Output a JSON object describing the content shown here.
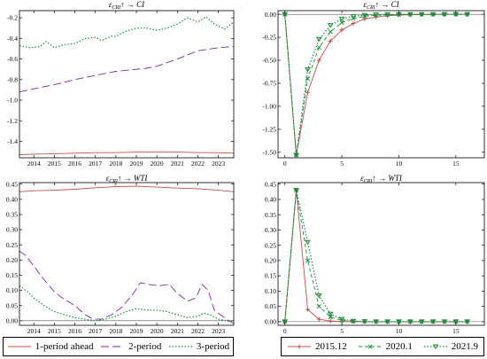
{
  "chart_data": [
    {
      "type": "line",
      "title": "ε_CRI ↑ → CI",
      "title_main": "ε",
      "title_sub": "CRI",
      "title_rest": "↑ → CI",
      "xaxis": "time",
      "x_tick_labels": [
        "2014",
        "2015",
        "2016",
        "2017",
        "2018",
        "2019",
        "2020",
        "2021",
        "2022",
        "2023"
      ],
      "x_tick_values": [
        2014,
        2015,
        2016,
        2017,
        2018,
        2019,
        2020,
        2021,
        2022,
        2023
      ],
      "xlim": [
        2013.3,
        2023.75
      ],
      "ylim": [
        -1.56,
        -0.13
      ],
      "y_ticks": [
        -1.4,
        -1.2,
        -1.0,
        -0.8,
        -0.6,
        -0.4,
        -0.2
      ],
      "y_tick_labels": [
        "-1.4",
        "-1.2",
        "-1.0",
        "-0.8",
        "-0.6",
        "-0.4",
        "-0.2"
      ],
      "zero_line": false,
      "legend": "bottom",
      "series": [
        {
          "name": "1-period ahead",
          "color": "#c0504d",
          "dash": "solid",
          "x": [
            2013.3,
            2014,
            2015,
            2016,
            2017,
            2018,
            2019,
            2020,
            2021,
            2022,
            2023,
            2023.75
          ],
          "y": [
            -1.53,
            -1.525,
            -1.52,
            -1.515,
            -1.51,
            -1.51,
            -1.505,
            -1.505,
            -1.505,
            -1.51,
            -1.51,
            -1.515
          ]
        },
        {
          "name": "2-period",
          "color": "#7b2c8f",
          "dash": "long",
          "x": [
            2013.3,
            2014,
            2015,
            2016,
            2017,
            2018,
            2019,
            2019.5,
            2020,
            2021,
            2022,
            2023,
            2023.75
          ],
          "y": [
            -0.92,
            -0.89,
            -0.85,
            -0.8,
            -0.76,
            -0.72,
            -0.7,
            -0.69,
            -0.67,
            -0.6,
            -0.52,
            -0.49,
            -0.48
          ]
        },
        {
          "name": "3-period",
          "color": "#1e8a3c",
          "dash": "dot",
          "x": [
            2013.3,
            2013.8,
            2014.3,
            2014.6,
            2015,
            2015.5,
            2016,
            2016.5,
            2017,
            2017.3,
            2017.8,
            2018,
            2018.5,
            2019,
            2019.5,
            2020,
            2020.5,
            2021,
            2021.5,
            2022,
            2022.4,
            2022.8,
            2023.3,
            2023.75
          ],
          "y": [
            -0.47,
            -0.49,
            -0.48,
            -0.43,
            -0.49,
            -0.46,
            -0.45,
            -0.4,
            -0.39,
            -0.42,
            -0.38,
            -0.38,
            -0.33,
            -0.3,
            -0.3,
            -0.32,
            -0.3,
            -0.26,
            -0.2,
            -0.24,
            -0.19,
            -0.26,
            -0.31,
            -0.24
          ]
        }
      ]
    },
    {
      "type": "line",
      "title": "ε_CRI ↑ → CI",
      "title_main": "ε",
      "title_sub": "CRI",
      "title_rest": "↑ → CI",
      "xaxis": "horizon",
      "x_tick_labels": [
        "0",
        "5",
        "10",
        "15"
      ],
      "x_tick_values": [
        0,
        5,
        10,
        15
      ],
      "xlim": [
        -0.6,
        17.5
      ],
      "ylim": [
        -1.56,
        0.04
      ],
      "y_ticks": [
        -1.5,
        -1.25,
        -1.0,
        -0.75,
        -0.5,
        -0.25,
        0.0
      ],
      "y_tick_labels": [
        "-1.50",
        "-1.25",
        "-1.00",
        "-0.75",
        "-0.50",
        "-0.25",
        "0.00"
      ],
      "zero_line": true,
      "legend": "bottom",
      "series": [
        {
          "name": "2015.12",
          "color": "#c0504d",
          "marker": "plus",
          "dash": "solid",
          "x": [
            0,
            1,
            2,
            3,
            4,
            5,
            6,
            7,
            8,
            9,
            10,
            11,
            12,
            13,
            14,
            15,
            16
          ],
          "y": [
            0,
            -1.53,
            -0.85,
            -0.5,
            -0.29,
            -0.17,
            -0.1,
            -0.05,
            -0.03,
            -0.015,
            -0.008,
            -0.004,
            -0.002,
            -0.001,
            0,
            0,
            0
          ]
        },
        {
          "name": "2020.1",
          "color": "#1e8a3c",
          "marker": "x",
          "dash": "dash",
          "x": [
            0,
            1,
            2,
            3,
            4,
            5,
            6,
            7,
            8,
            9,
            10,
            11,
            12,
            13,
            14,
            15,
            16
          ],
          "y": [
            0,
            -1.53,
            -0.7,
            -0.36,
            -0.19,
            -0.09,
            -0.045,
            -0.022,
            -0.011,
            -0.005,
            -0.002,
            -0.001,
            0,
            0,
            0,
            0,
            0
          ]
        },
        {
          "name": "2021.9",
          "color": "#1e8a3c",
          "marker": "triangle",
          "dash": "dot",
          "x": [
            0,
            1,
            2,
            3,
            4,
            5,
            6,
            7,
            8,
            9,
            10,
            11,
            12,
            13,
            14,
            15,
            16
          ],
          "y": [
            0,
            -1.53,
            -0.6,
            -0.27,
            -0.12,
            -0.05,
            -0.022,
            -0.01,
            -0.004,
            -0.002,
            -0.001,
            0,
            0,
            0,
            0,
            0,
            0
          ]
        }
      ]
    },
    {
      "type": "line",
      "title": "ε_CRI ↑ → WTI",
      "title_main": "ε",
      "title_sub": "CRI",
      "title_rest": "↑ → WTI",
      "xaxis": "time",
      "x_tick_labels": [
        "2014",
        "2015",
        "2016",
        "2017",
        "2018",
        "2019",
        "2020",
        "2021",
        "2022",
        "2023"
      ],
      "x_tick_values": [
        2014,
        2015,
        2016,
        2017,
        2018,
        2019,
        2020,
        2021,
        2022,
        2023
      ],
      "xlim": [
        2013.3,
        2023.75
      ],
      "ylim": [
        -0.015,
        0.455
      ],
      "y_ticks": [
        0.0,
        0.05,
        0.1,
        0.15,
        0.2,
        0.25,
        0.3,
        0.35,
        0.4,
        0.45
      ],
      "y_tick_labels": [
        "0.00",
        "0.05",
        "0.10",
        "0.15",
        "0.20",
        "0.25",
        "0.30",
        "0.35",
        "0.40",
        "0.45"
      ],
      "zero_line": true,
      "legend": "bottom",
      "series": [
        {
          "name": "1-period ahead",
          "color": "#c0504d",
          "dash": "solid",
          "x": [
            2013.3,
            2014,
            2015,
            2016,
            2017,
            2018,
            2019,
            2020,
            2021,
            2022,
            2023,
            2023.75
          ],
          "y": [
            0.425,
            0.428,
            0.43,
            0.433,
            0.438,
            0.442,
            0.443,
            0.44,
            0.437,
            0.435,
            0.43,
            0.425
          ]
        },
        {
          "name": "2-period",
          "color": "#7b2c8f",
          "dash": "long",
          "x": [
            2013.3,
            2013.6,
            2014,
            2014.5,
            2015,
            2015.5,
            2016,
            2016.5,
            2016.9,
            2017.3,
            2017.8,
            2018.3,
            2018.8,
            2019.2,
            2019.6,
            2020.1,
            2020.6,
            2021,
            2021.5,
            2021.9,
            2022.2,
            2022.5,
            2022.8,
            2023.1,
            2023.4,
            2023.75
          ],
          "y": [
            0.23,
            0.215,
            0.18,
            0.135,
            0.095,
            0.07,
            0.05,
            0.02,
            0.005,
            0.005,
            0.02,
            0.045,
            0.085,
            0.125,
            0.12,
            0.115,
            0.12,
            0.09,
            0.065,
            0.075,
            0.12,
            0.1,
            0.035,
            0.02,
            0.005,
            -0.01
          ]
        },
        {
          "name": "3-period",
          "color": "#1e8a3c",
          "dash": "dot",
          "x": [
            2013.3,
            2013.7,
            2014,
            2014.5,
            2015,
            2015.5,
            2016,
            2016.5,
            2017,
            2017.5,
            2018,
            2018.5,
            2019,
            2019.5,
            2020,
            2020.5,
            2021,
            2021.5,
            2022,
            2022.3,
            2022.6,
            2023,
            2023.4,
            2023.75
          ],
          "y": [
            0.115,
            0.095,
            0.075,
            0.05,
            0.03,
            0.02,
            0.01,
            0.005,
            0.0,
            0.005,
            0.015,
            0.03,
            0.04,
            0.035,
            0.035,
            0.03,
            0.02,
            0.01,
            0.015,
            0.025,
            0.02,
            0.005,
            0.0,
            -0.005
          ]
        }
      ]
    },
    {
      "type": "line",
      "title": "ε_CRI ↑ → WTI",
      "title_main": "ε",
      "title_sub": "CRI",
      "title_rest": "↑ → WTI",
      "xaxis": "horizon",
      "x_tick_labels": [
        "0",
        "5",
        "10",
        "15"
      ],
      "x_tick_values": [
        0,
        5,
        10,
        15
      ],
      "xlim": [
        -0.6,
        17.5
      ],
      "ylim": [
        -0.012,
        0.455
      ],
      "y_ticks": [
        0.0,
        0.05,
        0.1,
        0.15,
        0.2,
        0.25,
        0.3,
        0.35,
        0.4,
        0.45
      ],
      "y_tick_labels": [
        "0.00",
        "0.05",
        "0.10",
        "0.15",
        "0.20",
        "0.25",
        "0.30",
        "0.35",
        "0.40",
        "0.45"
      ],
      "zero_line": true,
      "legend": "bottom",
      "series": [
        {
          "name": "2015.12",
          "color": "#c0504d",
          "marker": "plus",
          "dash": "solid",
          "x": [
            0,
            1,
            2,
            3,
            4,
            5,
            6,
            7,
            8,
            9,
            10,
            11,
            12,
            13,
            14,
            15,
            16
          ],
          "y": [
            0,
            0.43,
            0.04,
            0.008,
            0.002,
            0.0005,
            0,
            0,
            0,
            0,
            0,
            0,
            0,
            0,
            0,
            0,
            0
          ]
        },
        {
          "name": "2020.1",
          "color": "#1e8a3c",
          "marker": "x",
          "dash": "dash",
          "x": [
            0,
            1,
            2,
            3,
            4,
            5,
            6,
            7,
            8,
            9,
            10,
            11,
            12,
            13,
            14,
            15,
            16
          ],
          "y": [
            0,
            0.43,
            0.2,
            0.05,
            0.015,
            0.004,
            0.001,
            0,
            0,
            0,
            0,
            0,
            0,
            0,
            0,
            0,
            0
          ]
        },
        {
          "name": "2021.9",
          "color": "#1e8a3c",
          "marker": "triangle",
          "dash": "dot",
          "x": [
            0,
            1,
            2,
            3,
            4,
            5,
            6,
            7,
            8,
            9,
            10,
            11,
            12,
            13,
            14,
            15,
            16
          ],
          "y": [
            0,
            0.43,
            0.26,
            0.085,
            0.025,
            0.008,
            0.002,
            0.001,
            0,
            0,
            0,
            0,
            0,
            0,
            0,
            0,
            0
          ]
        }
      ]
    }
  ],
  "legends": {
    "left": [
      {
        "name": "1-period ahead",
        "color": "#c0504d",
        "dash": "solid"
      },
      {
        "name": "2-period",
        "color": "#7b2c8f",
        "dash": "long"
      },
      {
        "name": "3-period",
        "color": "#1e8a3c",
        "dash": "dot"
      }
    ],
    "right": [
      {
        "name": "2015.12",
        "color": "#c0504d",
        "dash": "solid",
        "marker": "plus"
      },
      {
        "name": "2020.1",
        "color": "#1e8a3c",
        "dash": "dash",
        "marker": "x"
      },
      {
        "name": "2021.9",
        "color": "#1e8a3c",
        "dash": "dot",
        "marker": "triangle"
      }
    ]
  }
}
